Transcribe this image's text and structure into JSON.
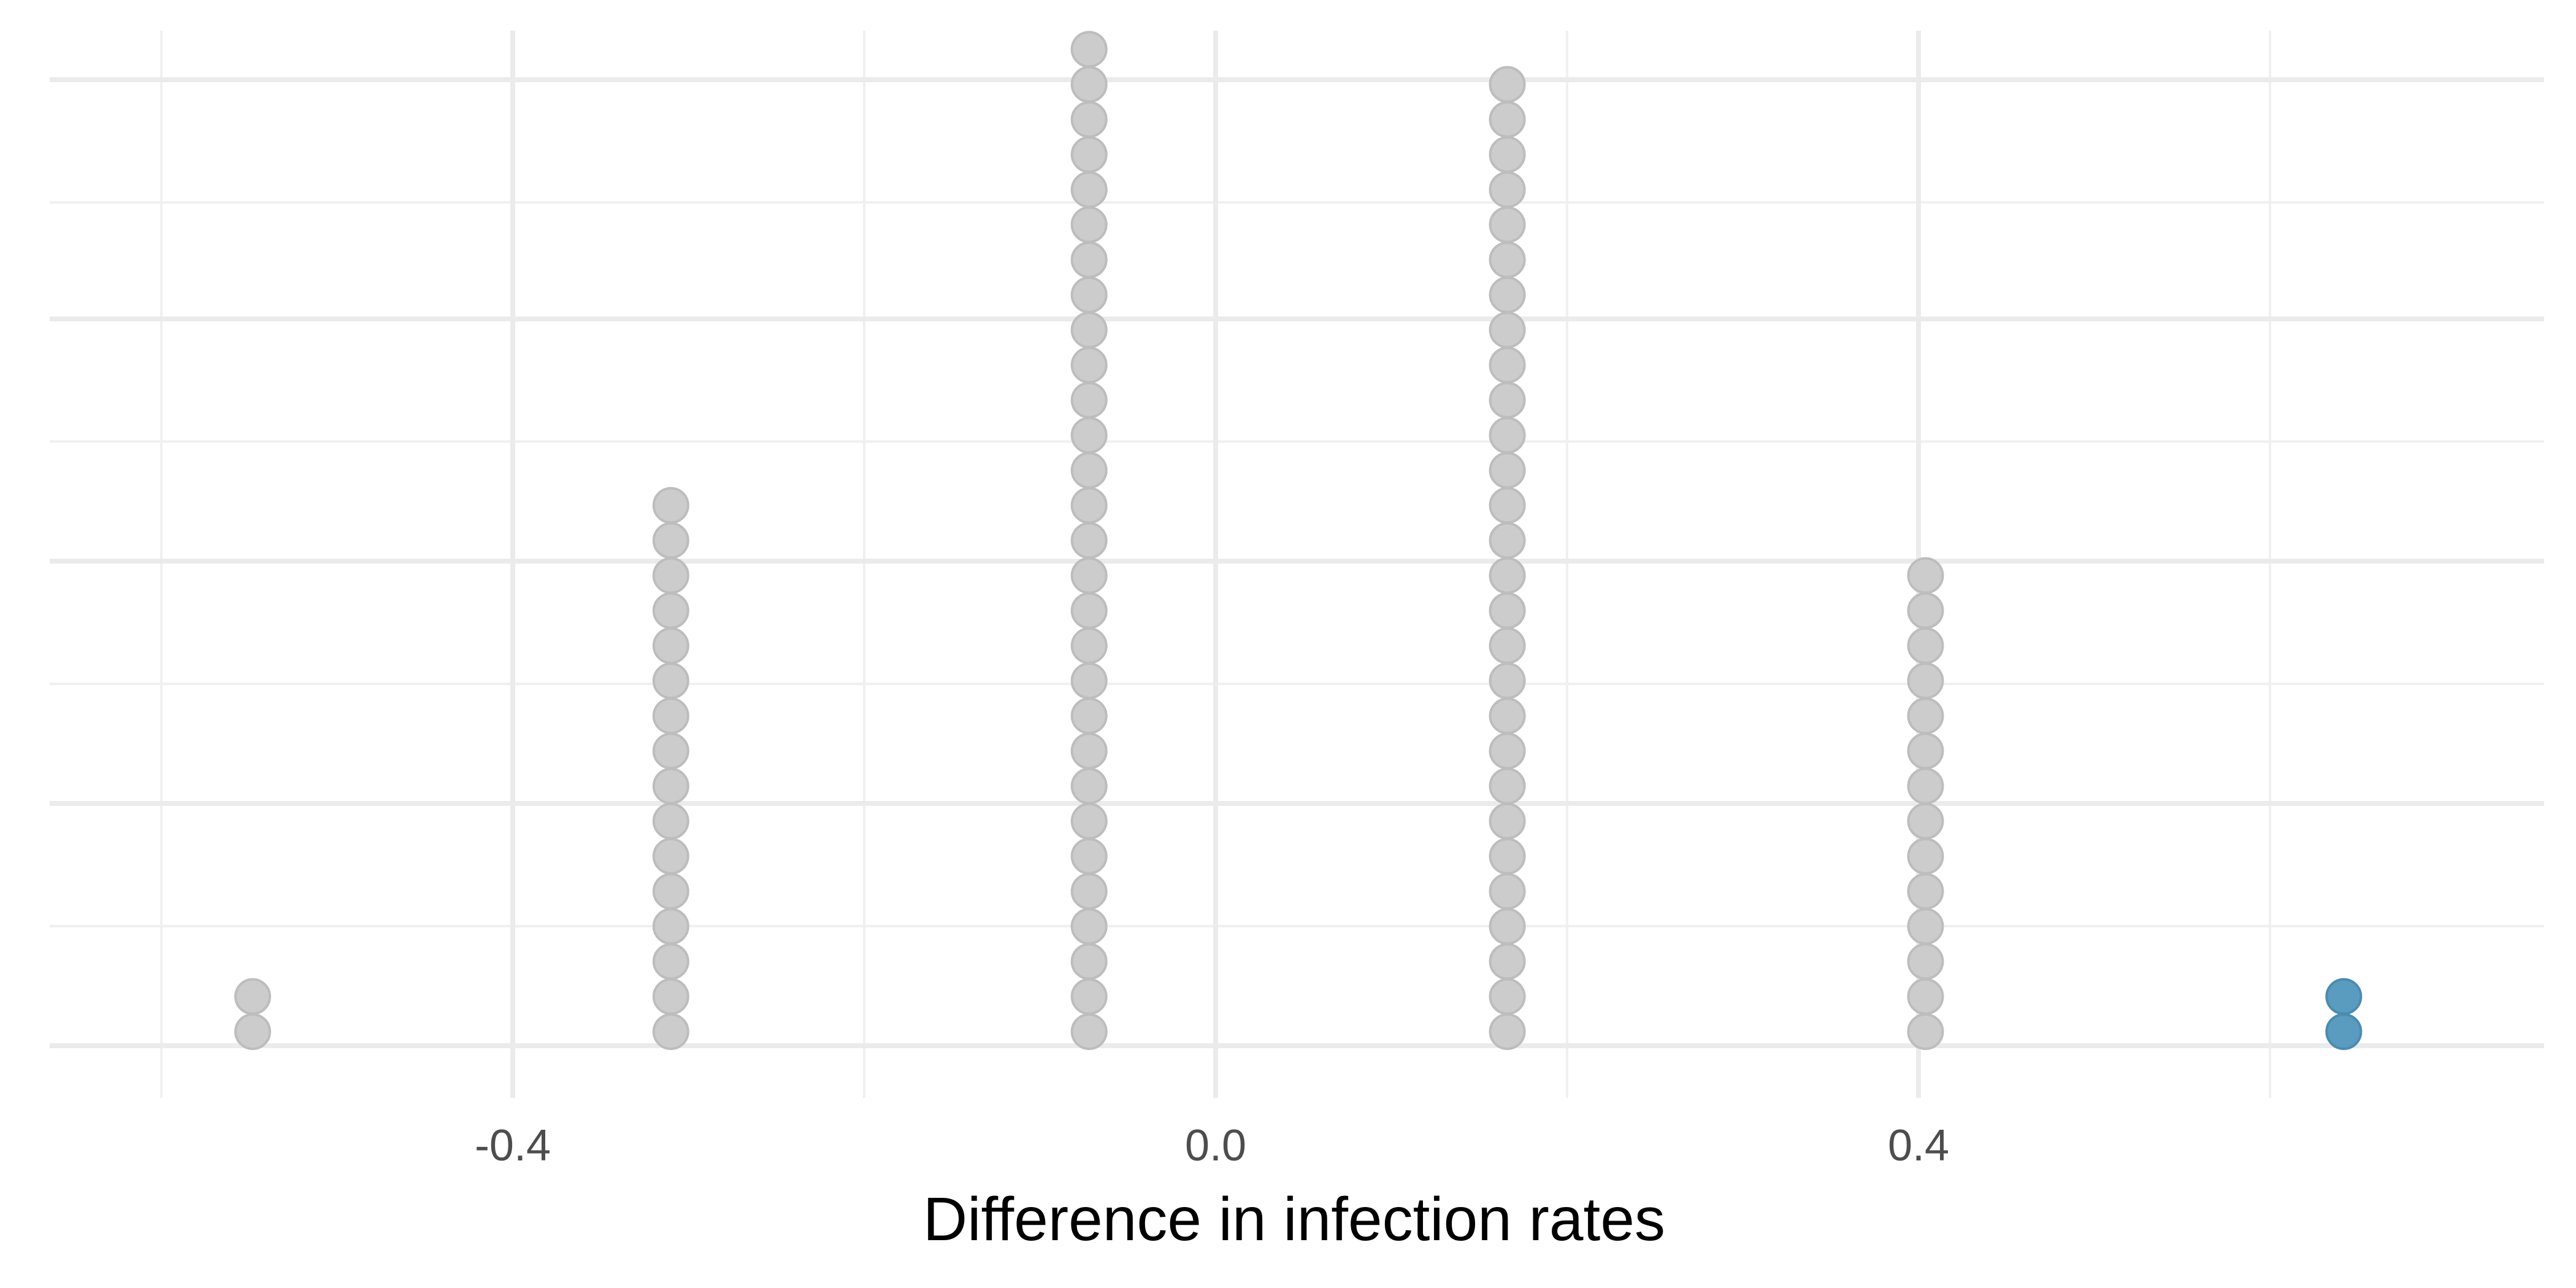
{
  "chart_data": {
    "type": "dotplot",
    "xlabel": "Difference in infection rates",
    "ylabel": "",
    "x_ticks": [
      -0.4,
      0.0,
      0.4
    ],
    "x_tick_labels": [
      "-0.4",
      "0.0",
      "0.4"
    ],
    "xlim": [
      -0.66,
      0.76
    ],
    "grid": true,
    "series": [
      {
        "color": "#cccccc",
        "stroke": "#bdbdbd",
        "points": [
          {
            "x": -0.548,
            "count": 2
          },
          {
            "x": -0.31,
            "count": 16
          },
          {
            "x": -0.072,
            "count": 29
          },
          {
            "x": 0.166,
            "count": 28
          },
          {
            "x": 0.404,
            "count": 14
          }
        ]
      },
      {
        "color": "#5a9cc0",
        "stroke": "#4a8cb0",
        "points": [
          {
            "x": 0.642,
            "count": 2
          }
        ]
      }
    ]
  }
}
